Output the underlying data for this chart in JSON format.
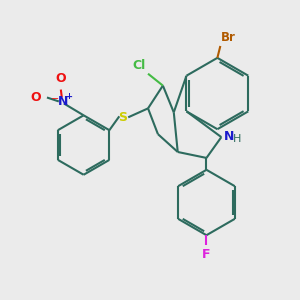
{
  "background_color": "#ebebeb",
  "bond_color": "#2d6b5e",
  "atom_colors": {
    "Br": "#b05a00",
    "Cl": "#44bb44",
    "N": "#1a1acc",
    "H_color": "#2d6b5e",
    "S": "#cccc00",
    "O": "#ee1111",
    "F": "#dd22dd"
  },
  "figsize": [
    3.0,
    3.0
  ],
  "dpi": 100
}
